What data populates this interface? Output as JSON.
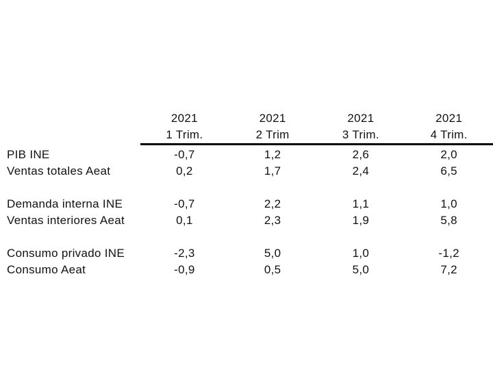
{
  "slide": {
    "background_color": "#ffffff",
    "text_color": "#111111",
    "rule_color": "#000000"
  },
  "chart_data": {
    "type": "table",
    "title": "",
    "columns": [
      {
        "year": "2021",
        "quarter": "1 Trim."
      },
      {
        "year": "2021",
        "quarter": "2 Trim"
      },
      {
        "year": "2021",
        "quarter": "3 Trim."
      },
      {
        "year": "2021",
        "quarter": "4 Trim."
      }
    ],
    "row_groups": [
      {
        "rows": [
          {
            "label": "PIB INE",
            "values": [
              "-0,7",
              "1,2",
              "2,6",
              "2,0"
            ]
          },
          {
            "label": "Ventas totales Aeat",
            "values": [
              "0,2",
              "1,7",
              "2,4",
              "6,5"
            ]
          }
        ]
      },
      {
        "rows": [
          {
            "label": "Demanda interna INE",
            "values": [
              "-0,7",
              "2,2",
              "1,1",
              "1,0"
            ]
          },
          {
            "label": "Ventas interiores Aeat",
            "values": [
              "0,1",
              "2,3",
              "1,9",
              "5,8"
            ]
          }
        ]
      },
      {
        "rows": [
          {
            "label": "Consumo privado INE",
            "values": [
              "-2,3",
              "5,0",
              "1,0",
              "-1,2"
            ]
          },
          {
            "label": "Consumo Aeat",
            "values": [
              "-0,9",
              "0,5",
              "5,0",
              "7,2"
            ]
          }
        ]
      }
    ],
    "layout": {
      "legend": "none",
      "grid": "single-rule-under-header",
      "value_format": "comma-decimal, one decimal place"
    }
  }
}
